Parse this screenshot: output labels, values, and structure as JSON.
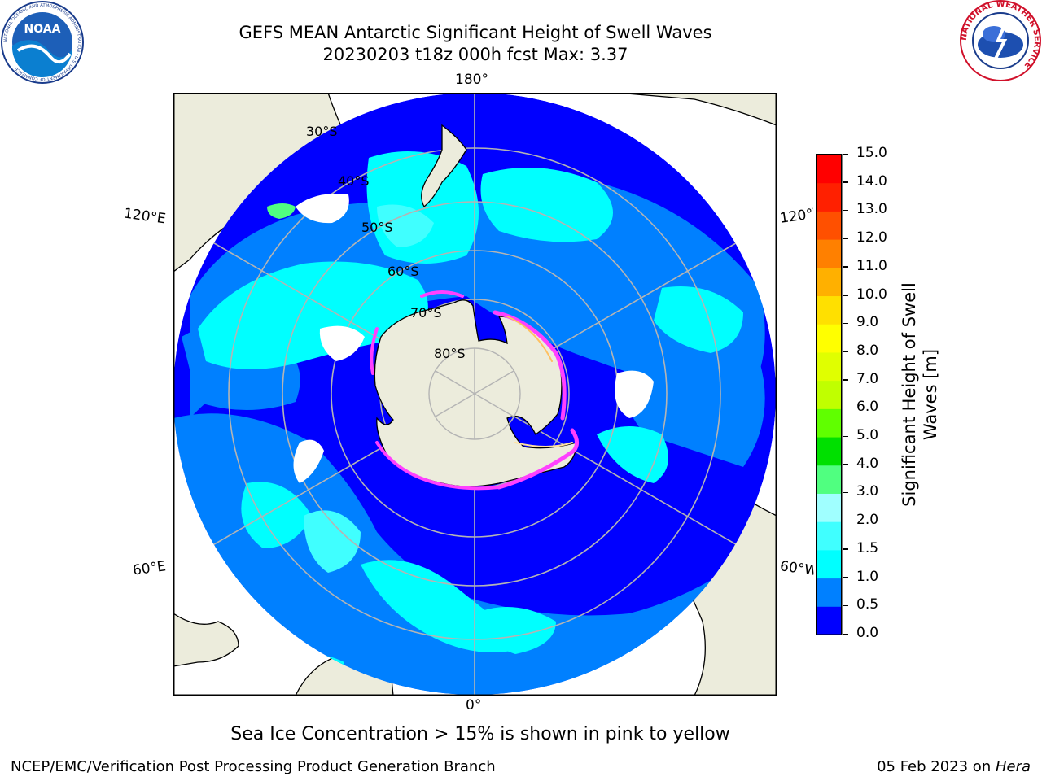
{
  "header": {
    "title_line1": "GEFS MEAN Antarctic Significant Height of Swell Waves",
    "title_line2": "20230203 t18z 000h fcst   Max: 3.37"
  },
  "logos": {
    "noaa_text": "NOAA",
    "noaa_ring_text": "NATIONAL OCEANIC AND ATMOSPHERIC ADMINISTRATION · U.S. DEPARTMENT OF COMMERCE",
    "nws_ring_text": "NATIONAL WEATHER SERVICE"
  },
  "map": {
    "projection": "south-polar-stereographic",
    "longitude_labels": {
      "top": "180°",
      "bottom": "0°",
      "upper_left": "120°E",
      "upper_right": "120°W",
      "lower_left": "60°E",
      "lower_right": "60°W"
    },
    "latitude_labels": [
      "30°S",
      "40°S",
      "50°S",
      "60°S",
      "70°S",
      "80°S"
    ],
    "colors": {
      "land": "#ececdc",
      "ocean_low": "#0000ff",
      "ocean_mid": "#0080ff",
      "ocean_high": "#00ffff",
      "sea_ice_pink": "#ff40ff",
      "grid": "#b4b4b4"
    }
  },
  "colorbar": {
    "label": "Significant Height of Swell Waves [m]",
    "ticks": [
      "0.0",
      "0.5",
      "1.0",
      "1.5",
      "2.0",
      "3.0",
      "4.0",
      "5.0",
      "6.0",
      "7.0",
      "8.0",
      "9.0",
      "10.0",
      "11.0",
      "12.0",
      "13.0",
      "14.0",
      "15.0"
    ],
    "colors": [
      "#0000ff",
      "#0080ff",
      "#00ffff",
      "#40ffff",
      "#a0ffff",
      "#50ff80",
      "#00e000",
      "#60ff00",
      "#c0ff00",
      "#e0ff00",
      "#ffff00",
      "#ffe000",
      "#ffb000",
      "#ff8000",
      "#ff5000",
      "#ff2000",
      "#ff0000"
    ]
  },
  "caption": "Sea Ice Concentration > 15% is shown in pink to yellow",
  "footer": {
    "left": "NCEP/EMC/Verification Post Processing Product Generation Branch",
    "right_date": "05 Feb 2023 on ",
    "right_machine": "Hera"
  }
}
